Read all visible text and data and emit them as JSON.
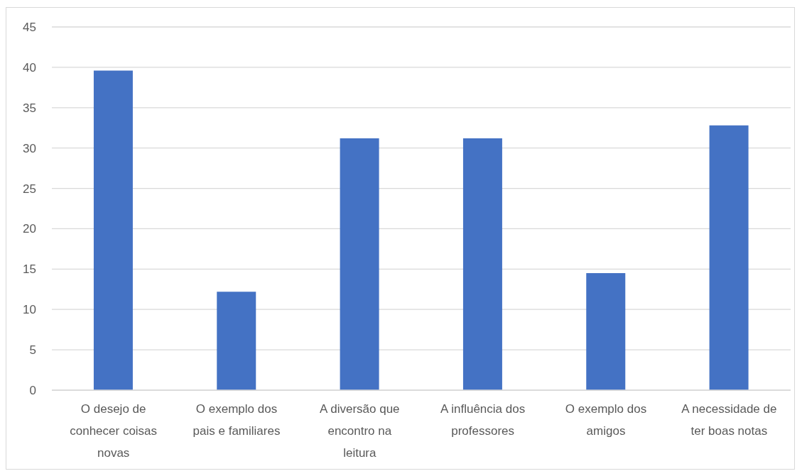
{
  "chart_data": {
    "type": "bar",
    "categories": [
      "O desejo de conhecer coisas novas",
      "O exemplo dos pais e familiares",
      "A diversão que encontro na leitura",
      "A influência dos professores",
      "O exemplo dos amigos",
      "A necessidade de ter boas notas"
    ],
    "values": [
      39.6,
      12.2,
      31.2,
      31.2,
      14.5,
      32.8
    ],
    "color": "#4472c4",
    "ylim": [
      0,
      45
    ],
    "yticks": [
      0,
      5,
      10,
      15,
      20,
      25,
      30,
      35,
      40,
      45
    ],
    "grid": "y"
  }
}
